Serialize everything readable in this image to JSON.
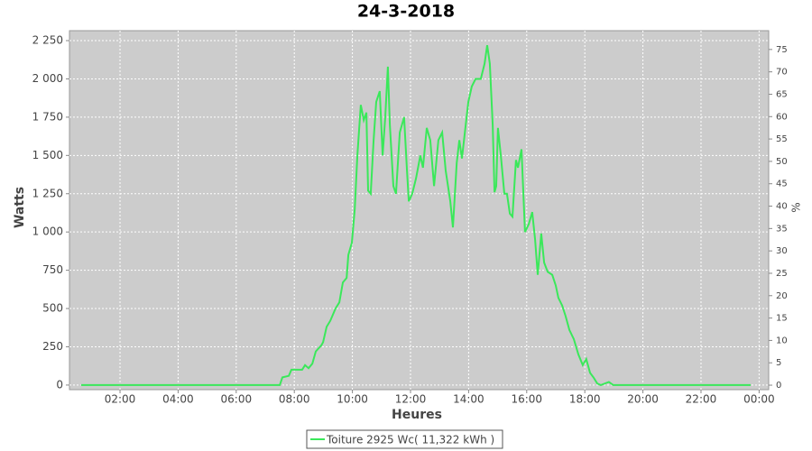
{
  "chart_data": {
    "type": "line",
    "title": "24-3-2018",
    "xlabel": "Heures",
    "ylabel": "Watts",
    "y2label": "%",
    "x": [
      0.66,
      7.5,
      7.59,
      7.81,
      7.9,
      8.27,
      8.37,
      8.49,
      8.62,
      8.74,
      8.93,
      8.99,
      9.11,
      9.24,
      9.42,
      9.55,
      9.67,
      9.8,
      9.86,
      9.98,
      10.08,
      10.17,
      10.29,
      10.39,
      10.48,
      10.54,
      10.63,
      10.73,
      10.82,
      10.94,
      11.04,
      11.13,
      11.22,
      11.29,
      11.41,
      11.5,
      11.63,
      11.78,
      11.88,
      11.94,
      12.06,
      12.19,
      12.34,
      12.43,
      12.56,
      12.68,
      12.81,
      12.96,
      13.09,
      13.21,
      13.37,
      13.46,
      13.59,
      13.68,
      13.77,
      13.9,
      13.99,
      14.11,
      14.24,
      14.42,
      14.55,
      14.64,
      14.73,
      14.83,
      14.89,
      14.95,
      15.01,
      15.11,
      15.23,
      15.32,
      15.42,
      15.51,
      15.63,
      15.7,
      15.82,
      15.94,
      16.07,
      16.19,
      16.29,
      16.38,
      16.5,
      16.6,
      16.72,
      16.88,
      17.0,
      17.09,
      17.22,
      17.34,
      17.47,
      17.62,
      17.78,
      17.93,
      18.05,
      18.18,
      18.3,
      18.43,
      18.55,
      18.83,
      18.98,
      23.71
    ],
    "series": [
      {
        "name": "Toiture 2925 Wc( 11,322 kWh )",
        "color": "#3ae85a",
        "values": [
          0,
          0,
          50,
          60,
          100,
          100,
          130,
          110,
          140,
          220,
          260,
          280,
          380,
          420,
          500,
          540,
          670,
          700,
          850,
          930,
          1150,
          1500,
          1830,
          1730,
          1780,
          1270,
          1250,
          1600,
          1850,
          1920,
          1500,
          1750,
          2080,
          1700,
          1300,
          1250,
          1650,
          1750,
          1400,
          1200,
          1250,
          1350,
          1500,
          1420,
          1680,
          1600,
          1300,
          1600,
          1650,
          1400,
          1200,
          1030,
          1450,
          1600,
          1480,
          1700,
          1850,
          1950,
          2000,
          2000,
          2100,
          2220,
          2100,
          1700,
          1260,
          1300,
          1680,
          1500,
          1250,
          1250,
          1120,
          1100,
          1470,
          1420,
          1540,
          1000,
          1050,
          1130,
          950,
          720,
          990,
          800,
          740,
          720,
          650,
          570,
          520,
          450,
          360,
          300,
          200,
          130,
          170,
          80,
          50,
          10,
          0,
          20,
          0,
          0
        ]
      }
    ],
    "xlim": [
      0.26,
      24.33
    ],
    "xticks": [
      {
        "value": 2,
        "label": "02:00"
      },
      {
        "value": 4,
        "label": "04:00"
      },
      {
        "value": 6,
        "label": "06:00"
      },
      {
        "value": 8,
        "label": "08:00"
      },
      {
        "value": 10,
        "label": "10:00"
      },
      {
        "value": 12,
        "label": "12:00"
      },
      {
        "value": 14,
        "label": "14:00"
      },
      {
        "value": 16,
        "label": "16:00"
      },
      {
        "value": 18,
        "label": "18:00"
      },
      {
        "value": 20,
        "label": "20:00"
      },
      {
        "value": 22,
        "label": "22:00"
      },
      {
        "value": 24,
        "label": "00:00"
      }
    ],
    "ylim": [
      -30,
      2315
    ],
    "yticks": [
      0,
      250,
      500,
      750,
      {
        "value": 1000,
        "label": "1 000"
      },
      {
        "value": 1250,
        "label": "1 250"
      },
      {
        "value": 1500,
        "label": "1 500"
      },
      {
        "value": 1750,
        "label": "1 750"
      },
      {
        "value": 2000,
        "label": "2 000"
      },
      {
        "value": 2250,
        "label": "2 250"
      }
    ],
    "y2lim": [
      -1,
      79.2
    ],
    "y2ticks": [
      0,
      5,
      10,
      15,
      20,
      25,
      30,
      35,
      40,
      45,
      50,
      55,
      60,
      65,
      70,
      75
    ],
    "grid": true,
    "legend": "bottom"
  }
}
